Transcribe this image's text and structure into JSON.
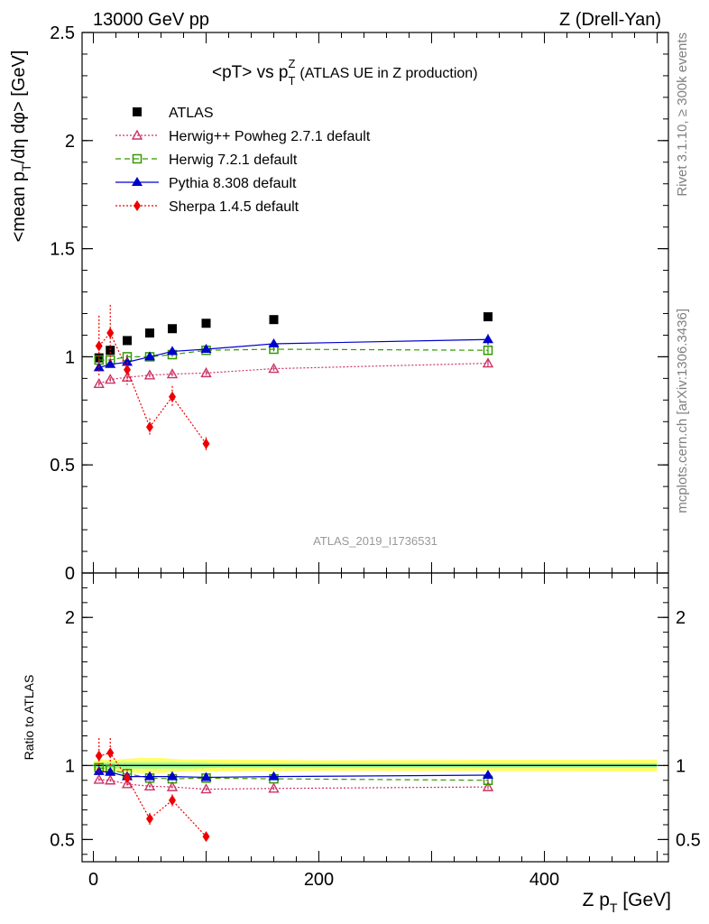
{
  "header": {
    "left": "13000 GeV pp",
    "right": "Z (Drell-Yan)"
  },
  "side_labels": {
    "top": "Rivet 3.1.10, ≥ 300k events",
    "bottom": "mcplots.cern.ch [arXiv:1306.3436]"
  },
  "watermark": "ATLAS_2019_I1736531",
  "colors": {
    "data": "#000000",
    "herwigpp": "#cc3366",
    "herwig7": "#339900",
    "pythia": "#0000cc",
    "sherpa": "#ee0000",
    "band_yellow": "#ffff66",
    "band_green": "#99ff99"
  },
  "chart_data": [
    {
      "name": "main",
      "type": "scatter",
      "title": "<pT> vs p_T^Z (ATLAS UE in Z production)",
      "title_parts": {
        "main": "<pT> vs p",
        "sub": "T",
        "sup": "Z",
        "rest": "(ATLAS UE in Z production)"
      },
      "ylabel": "<mean p_T/dη dφ> [GeV]",
      "ylabel_parts": {
        "pre": "<mean p",
        "sub": "T",
        "post": "/dη dφ> [GeV]"
      },
      "xlim": [
        -10,
        510
      ],
      "ylim": [
        0,
        2.5
      ],
      "y_ticks": [
        0,
        0.5,
        1,
        1.5,
        2,
        2.5
      ],
      "y_tick_labels": [
        "0",
        "0.5",
        "1",
        "1.5",
        "2",
        "2.5"
      ],
      "legend_position": "top-left",
      "series": [
        {
          "key": "atlas",
          "name": "ATLAS",
          "marker": "square-filled",
          "line": "none",
          "x": [
            5,
            15,
            30,
            50,
            70,
            100,
            160,
            350
          ],
          "y": [
            0.995,
            1.03,
            1.075,
            1.11,
            1.13,
            1.155,
            1.172,
            1.185
          ],
          "err": [
            0.01,
            0.01,
            0.01,
            0.01,
            0.01,
            0.01,
            0.01,
            0.015
          ]
        },
        {
          "key": "herwigpp",
          "name": "Herwig++ Powheg 2.7.1 default",
          "marker": "triangle-open",
          "line": "dotted",
          "x": [
            5,
            15,
            30,
            50,
            70,
            100,
            160,
            350
          ],
          "y": [
            0.875,
            0.895,
            0.905,
            0.915,
            0.92,
            0.925,
            0.945,
            0.97
          ],
          "err": [
            0.01,
            0.01,
            0.01,
            0.01,
            0.01,
            0.01,
            0.01,
            0.015
          ]
        },
        {
          "key": "herwig7",
          "name": "Herwig 7.2.1 default",
          "marker": "square-open",
          "line": "dashed",
          "x": [
            5,
            15,
            30,
            50,
            70,
            100,
            160,
            350
          ],
          "y": [
            0.985,
            0.985,
            1.0,
            1.0,
            1.01,
            1.03,
            1.035,
            1.03
          ],
          "err": [
            0.01,
            0.01,
            0.01,
            0.01,
            0.01,
            0.01,
            0.01,
            0.015
          ]
        },
        {
          "key": "pythia",
          "name": "Pythia 8.308 default",
          "marker": "triangle-filled",
          "line": "solid",
          "x": [
            5,
            15,
            30,
            50,
            70,
            100,
            160,
            350
          ],
          "y": [
            0.95,
            0.965,
            0.975,
            1.0,
            1.025,
            1.035,
            1.06,
            1.08
          ],
          "err": [
            0.01,
            0.01,
            0.01,
            0.01,
            0.01,
            0.01,
            0.01,
            0.025
          ]
        },
        {
          "key": "sherpa",
          "name": "Sherpa 1.4.5 default",
          "marker": "diamond-filled",
          "line": "dotted",
          "x": [
            5,
            15,
            30,
            50,
            70,
            100
          ],
          "y": [
            1.05,
            1.11,
            0.94,
            0.675,
            0.815,
            0.598
          ],
          "err": [
            0.14,
            0.13,
            0.07,
            0.04,
            0.05,
            0.03
          ]
        }
      ]
    },
    {
      "name": "ratio",
      "type": "scatter",
      "ylabel": "Ratio to ATLAS",
      "xlabel": "Z p_T [GeV]",
      "xlabel_parts": {
        "pre": "Z p",
        "sub": "T",
        "post": " [GeV]"
      },
      "xlim": [
        -10,
        510
      ],
      "ylim": [
        0.35,
        2.3
      ],
      "x_ticks": [
        0,
        200,
        400
      ],
      "x_tick_labels": [
        "0",
        "200",
        "400"
      ],
      "y_ticks": [
        0.5,
        1,
        2
      ],
      "y_tick_labels": [
        "0.5",
        "1",
        "2"
      ],
      "band": {
        "x": [
          0,
          10,
          20,
          40,
          60,
          80,
          120,
          200,
          500
        ],
        "yellow_half": [
          0.03,
          0.04,
          0.04,
          0.05,
          0.05,
          0.04,
          0.04,
          0.035,
          0.04
        ],
        "green_half": [
          0.015,
          0.02,
          0.02,
          0.02,
          0.02,
          0.02,
          0.015,
          0.015,
          0.015
        ]
      },
      "series": [
        {
          "key": "herwigpp",
          "x": [
            5,
            15,
            30,
            50,
            70,
            100,
            160,
            350
          ],
          "y": [
            0.905,
            0.9,
            0.875,
            0.86,
            0.855,
            0.84,
            0.845,
            0.855
          ],
          "err": [
            0.01,
            0.01,
            0.01,
            0.01,
            0.01,
            0.01,
            0.01,
            0.015
          ]
        },
        {
          "key": "herwig7",
          "x": [
            5,
            15,
            30,
            50,
            70,
            100,
            160,
            350
          ],
          "y": [
            0.985,
            0.97,
            0.945,
            0.915,
            0.91,
            0.915,
            0.91,
            0.9
          ],
          "err": [
            0.01,
            0.01,
            0.01,
            0.01,
            0.01,
            0.01,
            0.01,
            0.015
          ]
        },
        {
          "key": "pythia",
          "x": [
            5,
            15,
            30,
            50,
            70,
            100,
            160,
            350
          ],
          "y": [
            0.96,
            0.955,
            0.925,
            0.925,
            0.925,
            0.92,
            0.925,
            0.935
          ],
          "err": [
            0.01,
            0.01,
            0.01,
            0.01,
            0.01,
            0.01,
            0.01,
            0.025
          ]
        },
        {
          "key": "sherpa",
          "x": [
            5,
            15,
            30,
            50,
            70,
            100
          ],
          "y": [
            1.065,
            1.085,
            0.915,
            0.64,
            0.765,
            0.52
          ],
          "err": [
            0.12,
            0.1,
            0.06,
            0.04,
            0.04,
            0.03
          ]
        }
      ]
    }
  ]
}
